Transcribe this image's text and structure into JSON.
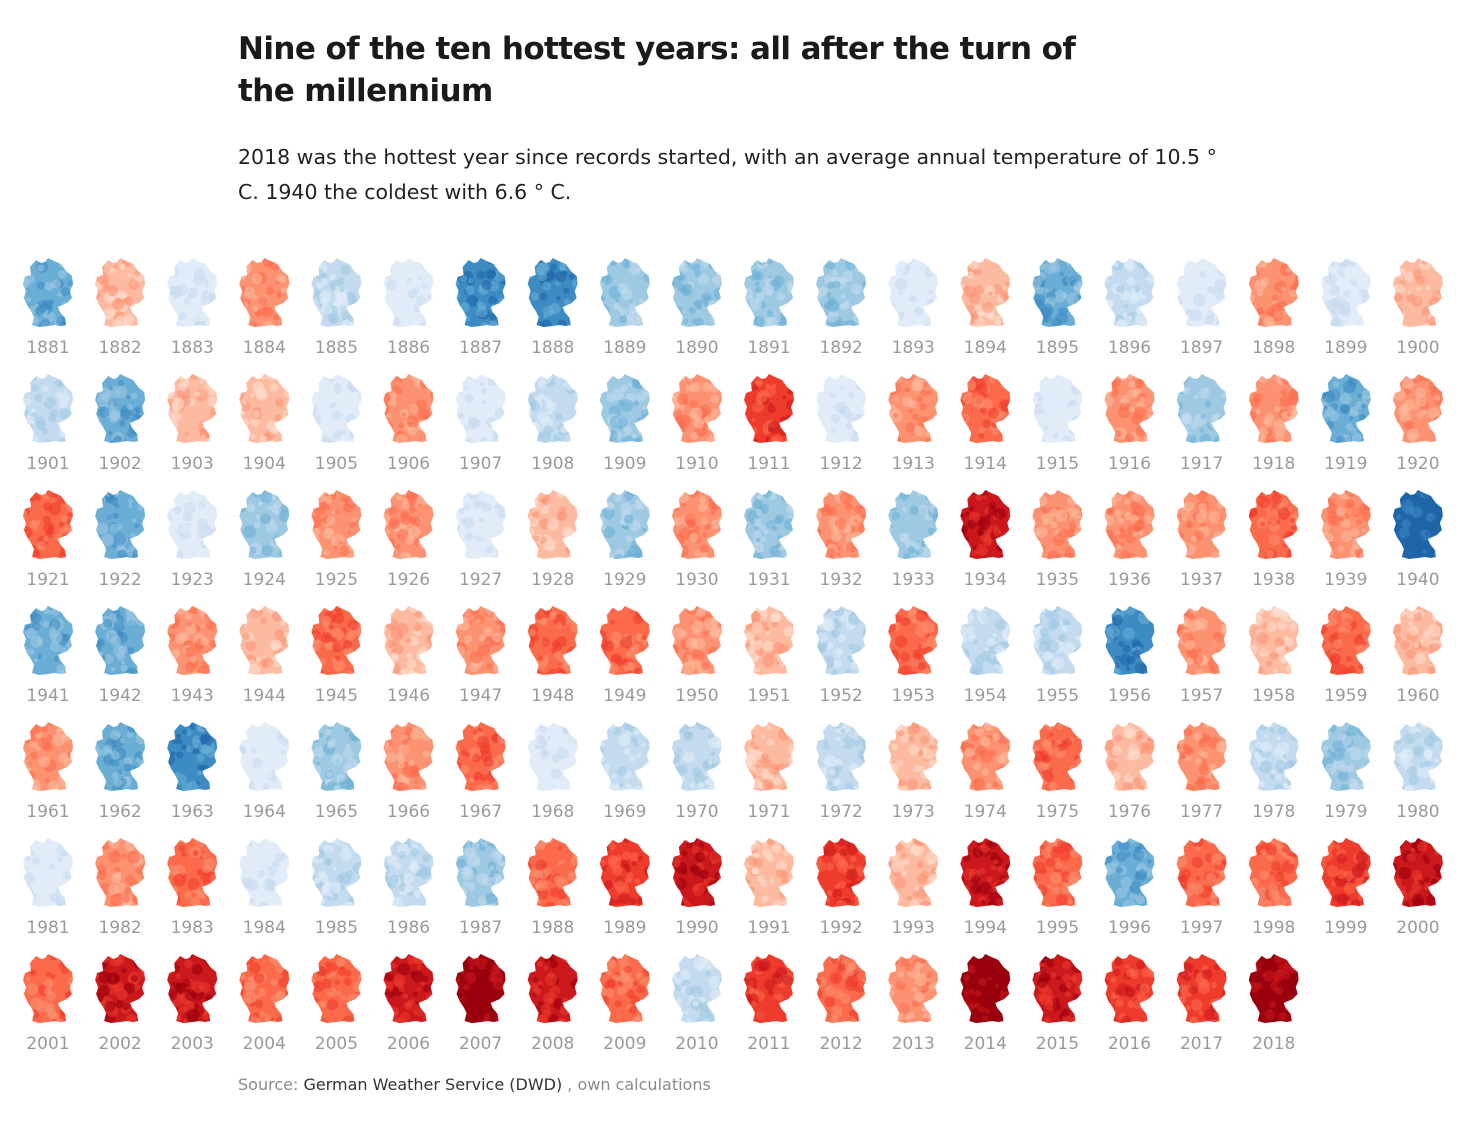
{
  "title": "Nine of the ten hottest years: all after the turn of the millennium",
  "subtitle": "2018 was the hottest year since records started, with an average annual temperature of 10.5 ° C. 1940 the coldest with 6.6 ° C.",
  "source": {
    "prefix": "Source: ",
    "name": "German Weather Service (DWD)",
    "suffix": " , own calculations"
  },
  "colors": {
    "cold_scale": [
      "#e2ecf8",
      "#c4dbef",
      "#9ec9e2",
      "#6aaed6",
      "#3c8bc3",
      "#1f65a9"
    ],
    "warm_scale": [
      "#fde0d2",
      "#fcbba1",
      "#fc9272",
      "#fb6a4a",
      "#ef3b2c",
      "#cb181d",
      "#99000d"
    ],
    "label": "#9a9a9a"
  },
  "chart_data": {
    "type": "heatmap",
    "description_of_encoding": "small multiples of Germany, one per year, colored by temperature anomaly (blue colder, red warmer)",
    "years": [
      1881,
      1882,
      1883,
      1884,
      1885,
      1886,
      1887,
      1888,
      1889,
      1890,
      1891,
      1892,
      1893,
      1894,
      1895,
      1896,
      1897,
      1898,
      1899,
      1900,
      1901,
      1902,
      1903,
      1904,
      1905,
      1906,
      1907,
      1908,
      1909,
      1910,
      1911,
      1912,
      1913,
      1914,
      1915,
      1916,
      1917,
      1918,
      1919,
      1920,
      1921,
      1922,
      1923,
      1924,
      1925,
      1926,
      1927,
      1928,
      1929,
      1930,
      1931,
      1932,
      1933,
      1934,
      1935,
      1936,
      1937,
      1938,
      1939,
      1940,
      1941,
      1942,
      1943,
      1944,
      1945,
      1946,
      1947,
      1948,
      1949,
      1950,
      1951,
      1952,
      1953,
      1954,
      1955,
      1956,
      1957,
      1958,
      1959,
      1960,
      1961,
      1962,
      1963,
      1964,
      1965,
      1966,
      1967,
      1968,
      1969,
      1970,
      1971,
      1972,
      1973,
      1974,
      1975,
      1976,
      1977,
      1978,
      1979,
      1980,
      1981,
      1982,
      1983,
      1984,
      1985,
      1986,
      1987,
      1988,
      1989,
      1990,
      1991,
      1992,
      1993,
      1994,
      1995,
      1996,
      1997,
      1998,
      1999,
      2000,
      2001,
      2002,
      2003,
      2004,
      2005,
      2006,
      2007,
      2008,
      2009,
      2010,
      2011,
      2012,
      2013,
      2014,
      2015,
      2016,
      2017,
      2018
    ],
    "anomaly_class": [
      -4,
      1,
      -1,
      2,
      -2,
      -1,
      -5,
      -5,
      -3,
      -3,
      -3,
      -3,
      -1,
      1,
      -4,
      -2,
      -1,
      2,
      -1,
      1,
      -2,
      -4,
      1,
      1,
      -1,
      2,
      -1,
      -2,
      -3,
      2,
      4,
      -1,
      2,
      3,
      -1,
      2,
      -3,
      2,
      -4,
      2,
      3,
      -4,
      -1,
      -3,
      2,
      2,
      -1,
      1,
      -3,
      2,
      -3,
      2,
      -3,
      5,
      2,
      2,
      2,
      3,
      2,
      -6,
      -4,
      -4,
      2,
      1,
      3,
      1,
      2,
      3,
      3,
      2,
      1,
      -2,
      3,
      -2,
      -2,
      -5,
      2,
      1,
      3,
      1,
      2,
      -4,
      -5,
      -1,
      -3,
      2,
      3,
      -1,
      -2,
      -2,
      1,
      -2,
      1,
      2,
      3,
      1,
      2,
      -2,
      -3,
      -2,
      -1,
      2,
      3,
      -1,
      -2,
      -2,
      -3,
      3,
      4,
      5,
      1,
      4,
      1,
      5,
      3,
      -4,
      3,
      3,
      4,
      5,
      3,
      5,
      5,
      3,
      3,
      5,
      6,
      5,
      3,
      -2,
      4,
      3,
      2,
      6,
      5,
      4,
      4,
      6
    ],
    "value_labels": {
      "hottest_year": 2018,
      "hottest_temp_c": 10.5,
      "coldest_year": 1940,
      "coldest_temp_c": 6.6
    }
  }
}
